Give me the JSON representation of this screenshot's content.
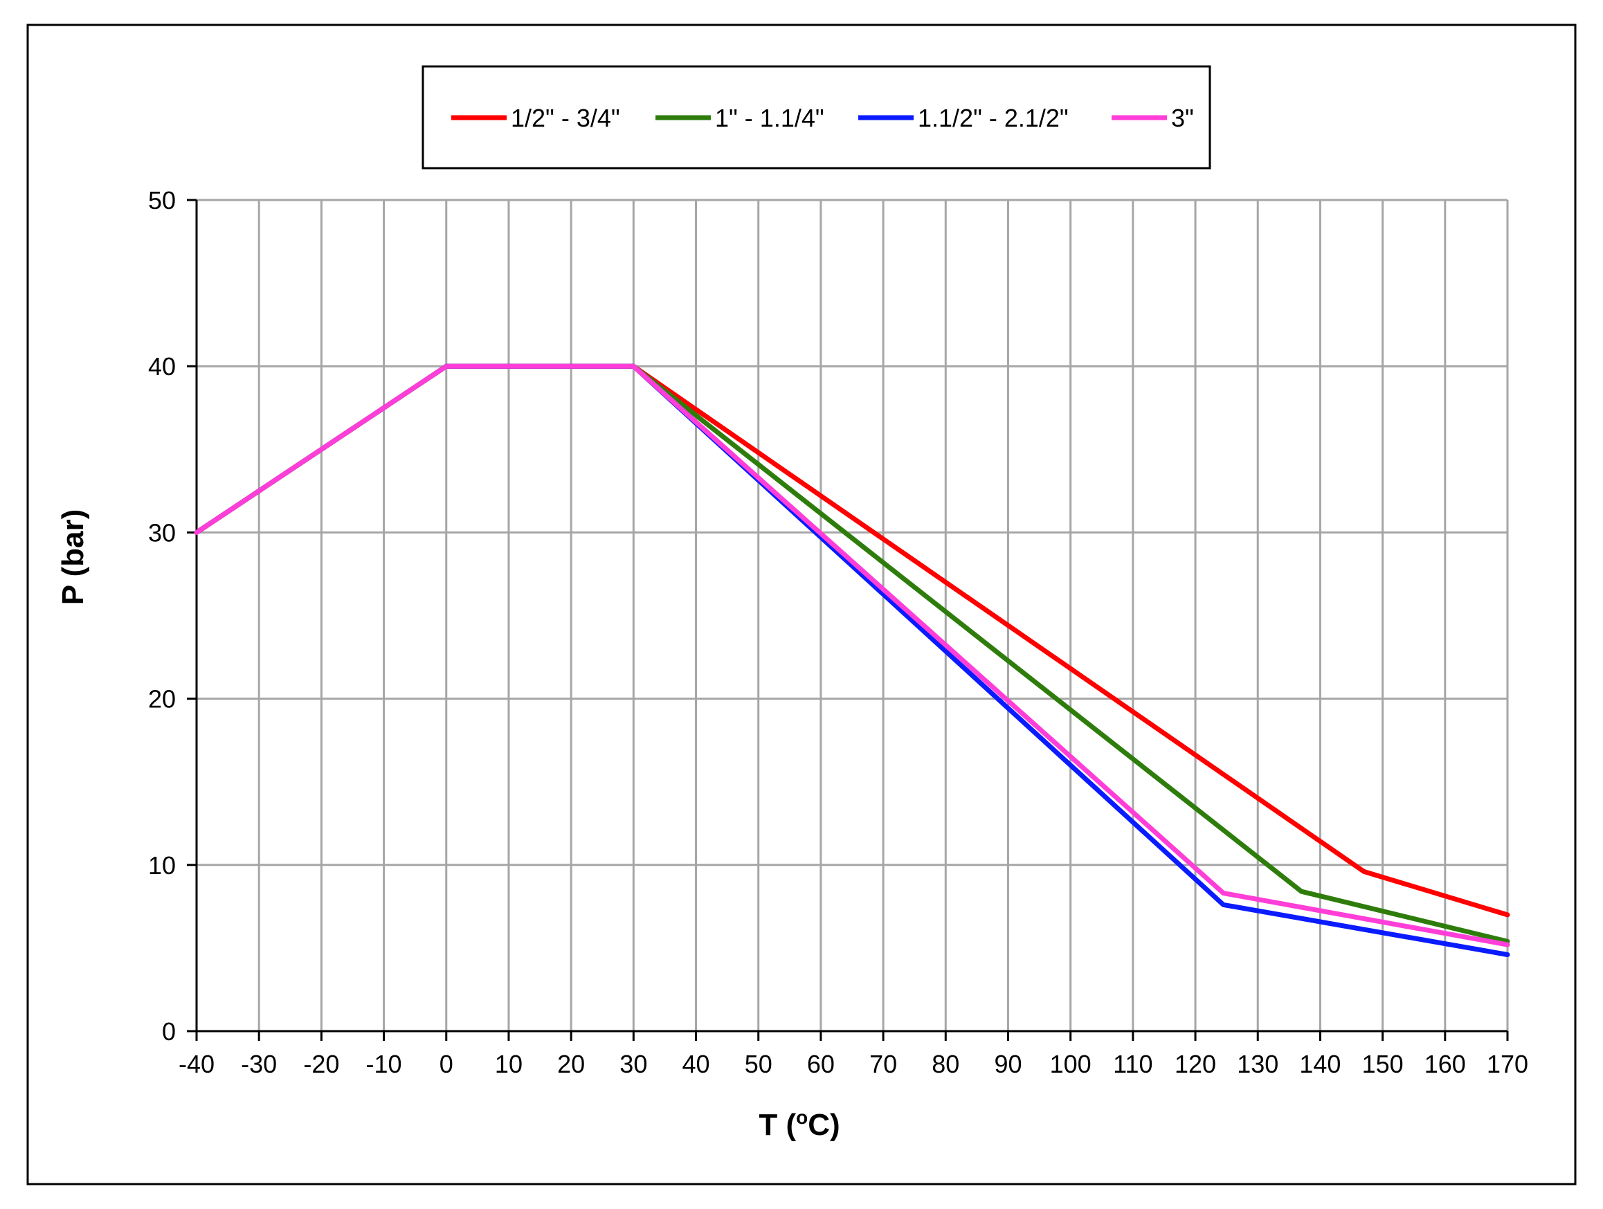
{
  "chart_data": {
    "type": "line",
    "title": "",
    "xlabel": "T (°C)",
    "xlabel_main": "T (",
    "xlabel_sup": "o",
    "xlabel_end": "C)",
    "ylabel": "P (bar)",
    "xlim": [
      -40,
      170
    ],
    "ylim": [
      0,
      50
    ],
    "xticks": [
      -40,
      -30,
      -20,
      -10,
      0,
      10,
      20,
      30,
      40,
      50,
      60,
      70,
      80,
      90,
      100,
      110,
      120,
      130,
      140,
      150,
      160,
      170
    ],
    "yticks": [
      0,
      10,
      20,
      30,
      40,
      50
    ],
    "grid": true,
    "legend_position": "top-center",
    "series": [
      {
        "name": "1/2\" - 3/4\"",
        "color": "#ff0000",
        "points": [
          [
            -40,
            30
          ],
          [
            0,
            40
          ],
          [
            30,
            40
          ],
          [
            147,
            9.6
          ],
          [
            170,
            7
          ]
        ]
      },
      {
        "name": "1\" - 1.1/4\"",
        "color": "#2e7d0c",
        "points": [
          [
            -40,
            30
          ],
          [
            0,
            40
          ],
          [
            30,
            40
          ],
          [
            137,
            8.4
          ],
          [
            170,
            5.4
          ]
        ]
      },
      {
        "name": "1.1/2\" - 2.1/2\"",
        "color": "#0a1bff",
        "points": [
          [
            -40,
            30
          ],
          [
            0,
            40
          ],
          [
            30,
            40
          ],
          [
            124.5,
            7.6
          ],
          [
            170,
            4.6
          ]
        ]
      },
      {
        "name": "3\"",
        "color": "#ff3ed8",
        "points": [
          [
            -40,
            30
          ],
          [
            0,
            40
          ],
          [
            30,
            40
          ],
          [
            124.5,
            8.3
          ],
          [
            170,
            5.2
          ]
        ]
      }
    ]
  }
}
